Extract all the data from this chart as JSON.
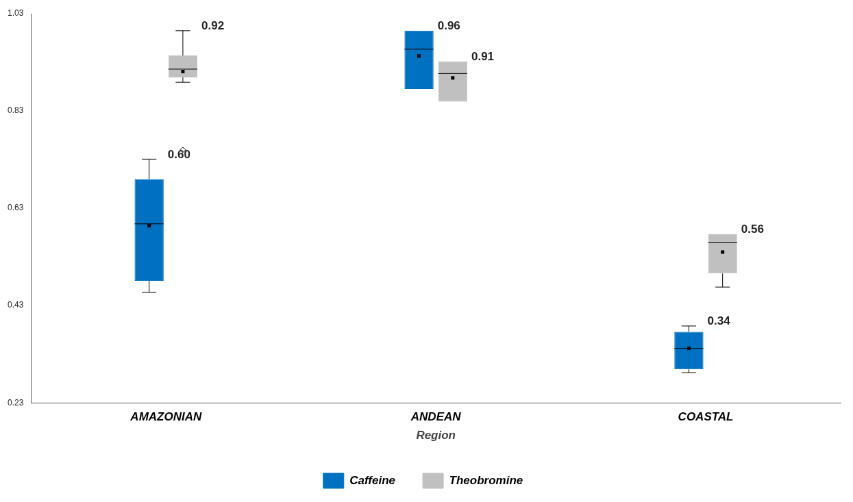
{
  "chart_data": {
    "type": "box",
    "xlabel": "Region",
    "categories": [
      "AMAZONIAN",
      "ANDEAN",
      "COASTAL"
    ],
    "ylim": [
      0.23,
      1.03
    ],
    "yticks": [
      0.23,
      0.43,
      0.63,
      0.83,
      1.03
    ],
    "grid": false,
    "legend": "bottom",
    "marker": "square",
    "series": [
      {
        "name": "Caffeine",
        "color": "#0070c0",
        "boxes": [
          {
            "low": 0.457,
            "q1": 0.481,
            "median": 0.598,
            "q3": 0.69,
            "high": 0.731,
            "mean": 0.594
          },
          {
            "low": 0.875,
            "q1": 0.875,
            "median": 0.957,
            "q3": 0.995,
            "high": 0.995,
            "mean": 0.943
          },
          {
            "low": 0.292,
            "q1": 0.299,
            "median": 0.342,
            "q3": 0.376,
            "high": 0.388,
            "mean": 0.342
          }
        ]
      },
      {
        "name": "Theobromine",
        "color": "#c0c0c0",
        "boxes": [
          {
            "low": 0.889,
            "q1": 0.899,
            "median": 0.916,
            "q3": 0.944,
            "high": 0.995,
            "mean": 0.911,
            "outliers": [
              0.75
            ]
          },
          {
            "low": 0.849,
            "q1": 0.849,
            "median": 0.907,
            "q3": 0.932,
            "high": 0.932,
            "mean": 0.898
          },
          {
            "low": 0.468,
            "q1": 0.496,
            "median": 0.559,
            "q3": 0.577,
            "high": 0.577,
            "mean": 0.54
          }
        ]
      }
    ],
    "annotations": [
      "0.60",
      "0.92",
      "0.96",
      "0.91",
      "0.34",
      "0.56"
    ]
  }
}
